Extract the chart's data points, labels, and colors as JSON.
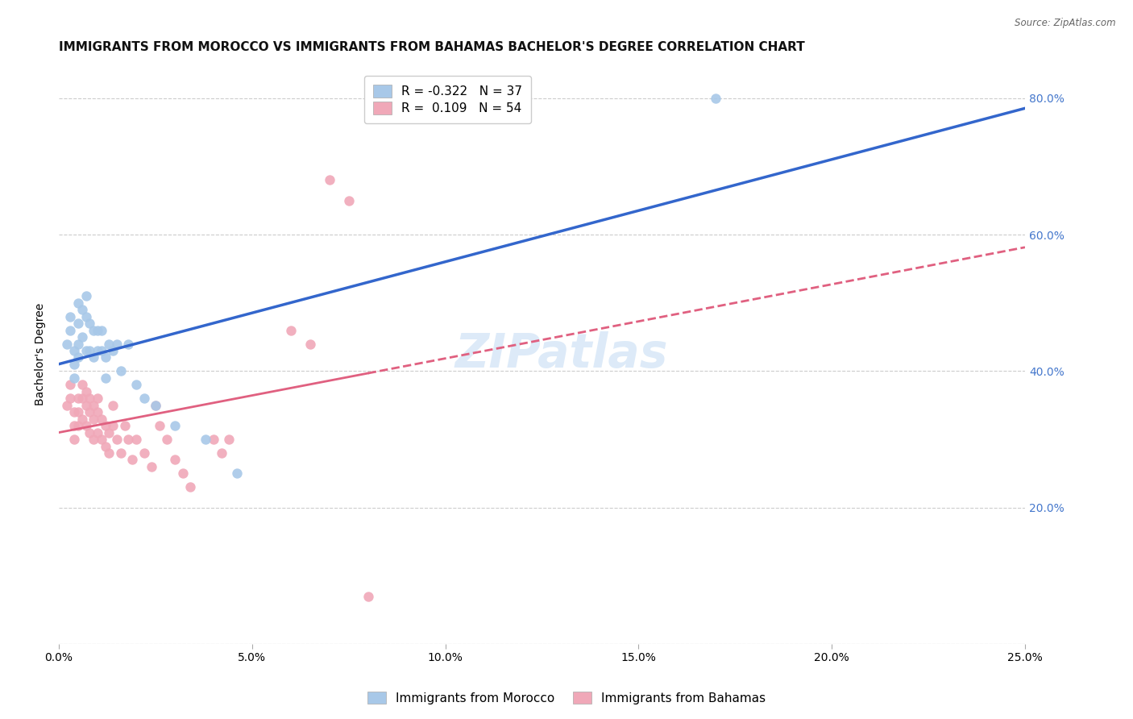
{
  "title": "IMMIGRANTS FROM MOROCCO VS IMMIGRANTS FROM BAHAMAS BACHELOR'S DEGREE CORRELATION CHART",
  "source": "Source: ZipAtlas.com",
  "ylabel": "Bachelor's Degree",
  "morocco_color": "#a8c8e8",
  "bahamas_color": "#f0a8b8",
  "morocco_line_color": "#3366cc",
  "bahamas_line_color": "#e06080",
  "watermark": "ZIPatlas",
  "background_color": "#ffffff",
  "grid_color": "#cccccc",
  "ytick_values": [
    0.0,
    0.2,
    0.4,
    0.6,
    0.8
  ],
  "ytick_labels": [
    "",
    "20.0%",
    "40.0%",
    "60.0%",
    "80.0%"
  ],
  "xtick_values": [
    0.0,
    0.05,
    0.1,
    0.15,
    0.2,
    0.25
  ],
  "xtick_labels": [
    "0.0%",
    "5.0%",
    "10.0%",
    "15.0%",
    "20.0%",
    "25.0%"
  ],
  "xlim": [
    0.0,
    0.25
  ],
  "ylim": [
    0.0,
    0.85
  ],
  "morocco_R": -0.322,
  "morocco_N": 37,
  "bahamas_R": 0.109,
  "bahamas_N": 54,
  "morocco_x": [
    0.002,
    0.003,
    0.003,
    0.004,
    0.004,
    0.004,
    0.005,
    0.005,
    0.005,
    0.005,
    0.006,
    0.006,
    0.007,
    0.007,
    0.007,
    0.008,
    0.008,
    0.009,
    0.009,
    0.01,
    0.01,
    0.011,
    0.011,
    0.012,
    0.012,
    0.013,
    0.014,
    0.015,
    0.016,
    0.018,
    0.02,
    0.025,
    0.03,
    0.038,
    0.046,
    0.17,
    0.022
  ],
  "morocco_y": [
    0.44,
    0.48,
    0.46,
    0.43,
    0.41,
    0.39,
    0.5,
    0.47,
    0.44,
    0.42,
    0.49,
    0.45,
    0.51,
    0.48,
    0.43,
    0.47,
    0.43,
    0.46,
    0.42,
    0.46,
    0.43,
    0.46,
    0.43,
    0.42,
    0.39,
    0.44,
    0.43,
    0.44,
    0.4,
    0.44,
    0.38,
    0.35,
    0.32,
    0.3,
    0.25,
    0.8,
    0.36
  ],
  "bahamas_x": [
    0.002,
    0.003,
    0.003,
    0.004,
    0.004,
    0.004,
    0.005,
    0.005,
    0.005,
    0.006,
    0.006,
    0.006,
    0.007,
    0.007,
    0.007,
    0.008,
    0.008,
    0.008,
    0.009,
    0.009,
    0.009,
    0.01,
    0.01,
    0.01,
    0.011,
    0.011,
    0.012,
    0.012,
    0.013,
    0.013,
    0.014,
    0.014,
    0.015,
    0.016,
    0.017,
    0.018,
    0.019,
    0.02,
    0.022,
    0.024,
    0.025,
    0.026,
    0.028,
    0.03,
    0.032,
    0.034,
    0.04,
    0.042,
    0.044,
    0.06,
    0.065,
    0.07,
    0.075,
    0.08
  ],
  "bahamas_y": [
    0.35,
    0.38,
    0.36,
    0.34,
    0.32,
    0.3,
    0.36,
    0.34,
    0.32,
    0.38,
    0.36,
    0.33,
    0.37,
    0.35,
    0.32,
    0.36,
    0.34,
    0.31,
    0.35,
    0.33,
    0.3,
    0.36,
    0.34,
    0.31,
    0.33,
    0.3,
    0.32,
    0.29,
    0.31,
    0.28,
    0.35,
    0.32,
    0.3,
    0.28,
    0.32,
    0.3,
    0.27,
    0.3,
    0.28,
    0.26,
    0.35,
    0.32,
    0.3,
    0.27,
    0.25,
    0.23,
    0.3,
    0.28,
    0.3,
    0.46,
    0.44,
    0.68,
    0.65,
    0.07
  ],
  "title_fontsize": 11,
  "axis_label_fontsize": 10,
  "tick_fontsize": 10,
  "legend_fontsize": 11,
  "watermark_fontsize": 42,
  "right_ytick_color": "#4477cc",
  "marker_size": 80
}
